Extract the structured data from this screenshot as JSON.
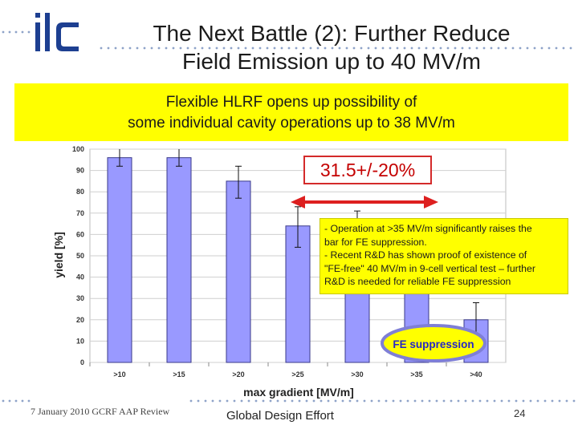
{
  "slide": {
    "logo_text": "ilc",
    "title": "The Next Battle (2): Further Reduce\nField Emission up to 40 MV/m",
    "banner": "Flexible HLRF opens up possibility of\nsome individual cavity operations up to 38 MV/m",
    "callout": "31.5+/-20%",
    "note_lines": [
      "- Operation at >35 MV/m significantly raises the",
      "bar for FE suppression.",
      "- Recent R&D has shown proof of existence of",
      "\"FE-free\" 40 MV/m in 9-cell vertical test – further",
      "R&D is needed for reliable FE suppression"
    ],
    "fe_label": "FE suppression",
    "footer_left": "7 January 2010 GCRF AAP Review",
    "footer_center": "Global Design Effort",
    "page_number": "24"
  },
  "colors": {
    "bar_fill": "#9999ff",
    "bar_stroke": "#3a3a8a",
    "banner": "#ffff00",
    "callout_text": "#c40000",
    "arrow": "#dd1f1f",
    "fe_ellipse_fill": "#ffff00",
    "fe_ellipse_stroke": "#7f7fd6",
    "fe_text": "#2525c8",
    "logo": "#1d3f91",
    "dots": "#8da2c8"
  },
  "chart_data": {
    "type": "bar",
    "categories": [
      ">10",
      ">15",
      ">20",
      ">25",
      ">30",
      ">35",
      ">40"
    ],
    "values": [
      96,
      96,
      85,
      64,
      63,
      53,
      20
    ],
    "error_low": [
      92,
      92,
      77,
      54,
      53,
      42,
      12
    ],
    "error_high": [
      100,
      100,
      92,
      73,
      71,
      63,
      28
    ],
    "xlabel": "max gradient [MV/m]",
    "ylabel": "yield [%]",
    "ylim": [
      0,
      100
    ],
    "yticks": [
      0,
      10,
      20,
      30,
      40,
      50,
      60,
      70,
      80,
      90,
      100
    ],
    "grid": true
  }
}
